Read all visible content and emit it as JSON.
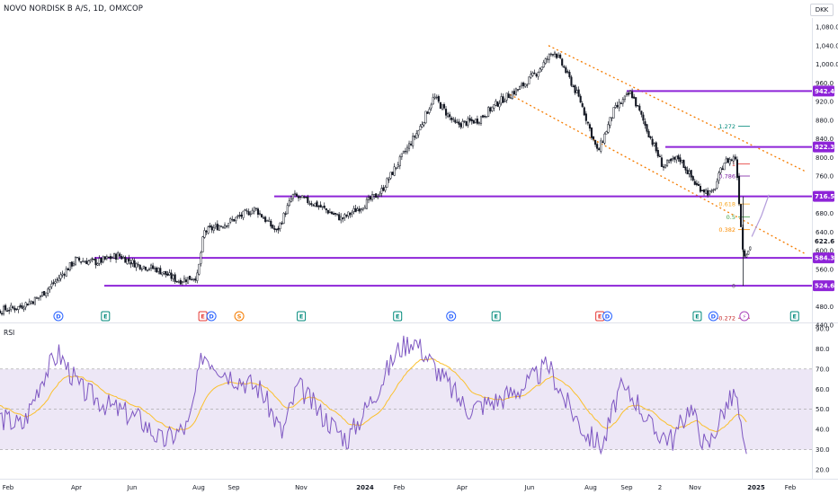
{
  "header": {
    "symbol_title": "NOVO NORDISK B A/S, 1D, OMXCOP",
    "currency_button": "DKK"
  },
  "rsi_panel": {
    "label": "RSI"
  },
  "colors": {
    "accent_purple": "#9c27b0",
    "level_line": "#8e24d8",
    "channel_orange": "#f57c00",
    "candle": "#131722",
    "rsi_line": "#7e57c2",
    "rsi_ma": "#fbc02d",
    "rsi_band": "#ede7f6"
  },
  "chart_data": [
    {
      "type": "candlestick",
      "title": "NOVO NORDISK B A/S, 1D, OMXCOP",
      "y_unit": "DKK",
      "ylim": [
        440,
        1100
      ],
      "y_ticks": [
        440.0,
        480.0,
        520.0,
        560.0,
        600.0,
        640.0,
        680.0,
        720.0,
        760.0,
        800.0,
        840.0,
        880.0,
        920.0,
        960.0,
        1000.0,
        1040.0,
        1080.0
      ],
      "x_ticks": [
        "Feb",
        "Apr",
        "Jun",
        "Aug",
        "Sep",
        "Nov",
        "2024",
        "Feb",
        "Apr",
        "Jun",
        "Aug",
        "Sep",
        "2",
        "Nov",
        "2025",
        "Feb"
      ],
      "close_path": [
        [
          "2023-01-02",
          448
        ],
        [
          "2023-01-20",
          470
        ],
        [
          "2023-02-10",
          478
        ],
        [
          "2023-03-01",
          498
        ],
        [
          "2023-03-20",
          540
        ],
        [
          "2023-04-05",
          580
        ],
        [
          "2023-04-25",
          575
        ],
        [
          "2023-05-15",
          590
        ],
        [
          "2023-06-01",
          570
        ],
        [
          "2023-06-20",
          560
        ],
        [
          "2023-07-10",
          535
        ],
        [
          "2023-07-28",
          545
        ],
        [
          "2023-08-03",
          640
        ],
        [
          "2023-08-25",
          660
        ],
        [
          "2023-09-20",
          690
        ],
        [
          "2023-10-10",
          640
        ],
        [
          "2023-10-25",
          718
        ],
        [
          "2023-11-15",
          700
        ],
        [
          "2023-12-10",
          668
        ],
        [
          "2023-12-28",
          695
        ],
        [
          "2024-01-15",
          725
        ],
        [
          "2024-02-01",
          790
        ],
        [
          "2024-02-20",
          860
        ],
        [
          "2024-03-05",
          930
        ],
        [
          "2024-03-25",
          870
        ],
        [
          "2024-04-15",
          880
        ],
        [
          "2024-05-05",
          920
        ],
        [
          "2024-05-25",
          950
        ],
        [
          "2024-06-10",
          985
        ],
        [
          "2024-06-25",
          1030
        ],
        [
          "2024-07-05",
          990
        ],
        [
          "2024-07-20",
          920
        ],
        [
          "2024-08-05",
          810
        ],
        [
          "2024-08-20",
          900
        ],
        [
          "2024-09-05",
          940
        ],
        [
          "2024-09-20",
          860
        ],
        [
          "2024-10-05",
          780
        ],
        [
          "2024-10-20",
          800
        ],
        [
          "2024-11-05",
          740
        ],
        [
          "2024-11-20",
          720
        ],
        [
          "2024-12-01",
          790
        ],
        [
          "2024-12-12",
          800
        ],
        [
          "2024-12-19",
          590
        ],
        [
          "2024-12-27",
          612
        ]
      ],
      "last_price": 622.6,
      "horizontal_levels": [
        942.4,
        822.3,
        716.5,
        584.3,
        524.6
      ],
      "fibonacci": [
        {
          "ratio": "1.272",
          "price": 867
        },
        {
          "ratio": "1",
          "price": 786
        },
        {
          "ratio": "0.786",
          "price": 760
        },
        {
          "ratio": "0.618",
          "price": 700
        },
        {
          "ratio": "0.5",
          "price": 672
        },
        {
          "ratio": "0.382",
          "price": 645
        },
        {
          "ratio": "0",
          "price": 524.6
        },
        {
          "ratio": "-0.272",
          "price": 455
        }
      ],
      "channel": [
        {
          "from": [
            "2024-06-20",
            1040
          ],
          "to": [
            "2025-02-15",
            770
          ]
        },
        {
          "from": [
            "2024-05-15",
            935
          ],
          "to": [
            "2025-02-15",
            593
          ]
        }
      ],
      "event_markers": [
        {
          "date": "2023-01-04",
          "letter": "E"
        },
        {
          "date": "2023-03-20",
          "letter": "D"
        },
        {
          "date": "2023-05-03",
          "letter": "E"
        },
        {
          "date": "2023-08-02",
          "letter": "E"
        },
        {
          "date": "2023-08-10",
          "letter": "D"
        },
        {
          "date": "2023-09-05",
          "letter": "S"
        },
        {
          "date": "2023-11-02",
          "letter": "E"
        },
        {
          "date": "2024-01-31",
          "letter": "E"
        },
        {
          "date": "2024-03-21",
          "letter": "D"
        },
        {
          "date": "2024-05-02",
          "letter": "E"
        },
        {
          "date": "2024-08-07",
          "letter": "E"
        },
        {
          "date": "2024-08-14",
          "letter": "D"
        },
        {
          "date": "2024-11-06",
          "letter": "E"
        },
        {
          "date": "2024-11-21",
          "letter": "D"
        },
        {
          "date": "2024-12-20",
          "letter": "⚡"
        },
        {
          "date": "2025-02-05",
          "letter": "E"
        }
      ]
    },
    {
      "type": "line",
      "title": "RSI",
      "ylim": [
        20,
        90
      ],
      "y_ticks": [
        20.0,
        30.0,
        40.0,
        50.0,
        60.0,
        70.0,
        80.0,
        90.0
      ],
      "bands": [
        30,
        50,
        70
      ],
      "series": [
        {
          "name": "RSI",
          "path": [
            [
              "2023-01-02",
              55
            ],
            [
              "2023-01-25",
              46
            ],
            [
              "2023-02-15",
              42
            ],
            [
              "2023-03-05",
              66
            ],
            [
              "2023-03-20",
              78
            ],
            [
              "2023-04-10",
              60
            ],
            [
              "2023-05-05",
              52
            ],
            [
              "2023-06-05",
              45
            ],
            [
              "2023-06-25",
              34
            ],
            [
              "2023-07-20",
              42
            ],
            [
              "2023-08-02",
              78
            ],
            [
              "2023-08-25",
              68
            ],
            [
              "2023-09-25",
              60
            ],
            [
              "2023-10-15",
              38
            ],
            [
              "2023-10-30",
              62
            ],
            [
              "2023-11-20",
              48
            ],
            [
              "2023-12-15",
              35
            ],
            [
              "2024-01-10",
              58
            ],
            [
              "2024-02-01",
              80
            ],
            [
              "2024-02-15",
              85
            ],
            [
              "2024-03-10",
              68
            ],
            [
              "2024-04-05",
              50
            ],
            [
              "2024-05-05",
              55
            ],
            [
              "2024-05-30",
              62
            ],
            [
              "2024-06-20",
              72
            ],
            [
              "2024-07-05",
              55
            ],
            [
              "2024-07-25",
              38
            ],
            [
              "2024-08-10",
              32
            ],
            [
              "2024-08-25",
              60
            ],
            [
              "2024-09-10",
              55
            ],
            [
              "2024-09-25",
              40
            ],
            [
              "2024-10-15",
              35
            ],
            [
              "2024-10-30",
              52
            ],
            [
              "2024-11-15",
              30
            ],
            [
              "2024-12-01",
              50
            ],
            [
              "2024-12-12",
              58
            ],
            [
              "2024-12-19",
              31
            ],
            [
              "2024-12-23",
              23
            ]
          ]
        }
      ]
    }
  ]
}
